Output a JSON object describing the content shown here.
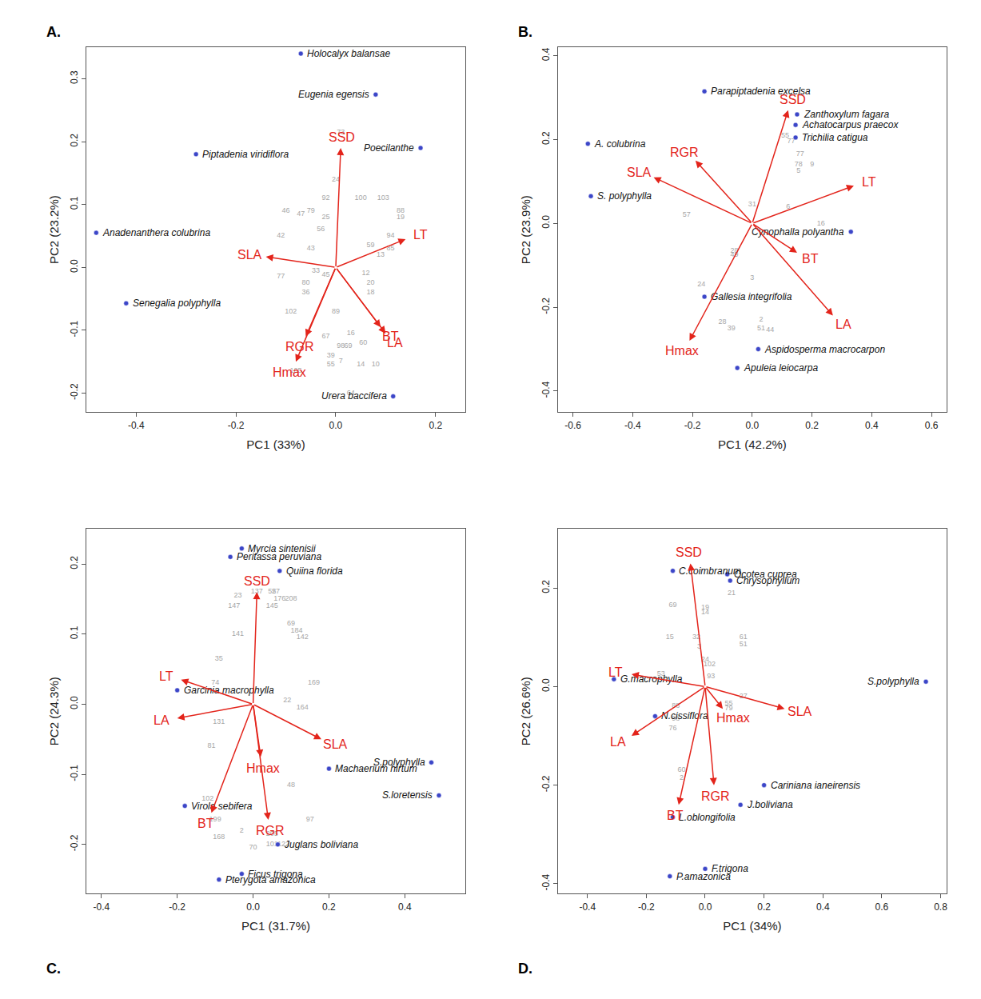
{
  "chart_data": [
    {
      "type": "biplot",
      "panel": "A.",
      "x_label": "PC1 (33%)",
      "y_label": "PC2 (23.2%)",
      "grid": false,
      "xlim": [
        -0.5,
        0.26
      ],
      "xticks": [
        -0.4,
        -0.2,
        {
          "value": 0,
          "label": "0.0"
        },
        0.2
      ],
      "ylim": [
        -0.23,
        0.35
      ],
      "yticks": [
        -0.2,
        -0.1,
        {
          "value": 0,
          "label": "0.0"
        },
        0.1,
        0.2,
        0.3
      ],
      "points": {
        "color": "#3c46c8",
        "labels": [
          "Holocalyx balansae",
          "Eugenia egensis",
          "Piptadenia viridiflora",
          "Poecilanthe",
          "Anadenanthera colubrina",
          "Senegalia polyphylla",
          "Urera baccifera"
        ],
        "x": [
          -0.07,
          0.08,
          -0.28,
          0.17,
          -0.48,
          -0.42,
          0.115
        ],
        "y": [
          0.34,
          0.275,
          0.18,
          0.19,
          0.055,
          -0.057,
          -0.205
        ]
      },
      "vectors": {
        "color": "#e3241b",
        "labels": [
          "SSD",
          "LT",
          "SLA",
          "BT",
          "LA",
          "RGR",
          "Hmax"
        ],
        "x": [
          0.01,
          0.14,
          -0.14,
          0.09,
          0.1,
          -0.06,
          -0.08
        ],
        "y": [
          0.19,
          0.045,
          0.017,
          -0.095,
          -0.105,
          -0.11,
          -0.15
        ]
      },
      "observations": {
        "color": "#a6a6a6",
        "labels": [
          "73",
          "24",
          "92",
          "100",
          "103",
          "88",
          "19",
          "46",
          "79",
          "47",
          "42",
          "56",
          "25",
          "43",
          "94",
          "59",
          "13",
          "85",
          "77",
          "80",
          "36",
          "102",
          "12",
          "20",
          "18",
          "89",
          "67",
          "98",
          "69",
          "60",
          "16",
          "39",
          "55",
          "7",
          "14",
          "10",
          "64",
          "33",
          "45",
          "105"
        ],
        "x": [
          0.01,
          0.0,
          -0.02,
          0.05,
          0.095,
          0.13,
          0.13,
          -0.1,
          -0.05,
          -0.07,
          -0.11,
          -0.03,
          -0.02,
          -0.05,
          0.11,
          0.07,
          0.09,
          0.11,
          -0.11,
          -0.06,
          -0.06,
          -0.09,
          0.06,
          0.07,
          0.07,
          0.0,
          -0.02,
          0.01,
          0.025,
          0.055,
          0.03,
          -0.01,
          -0.01,
          0.01,
          0.05,
          0.08,
          0.03,
          -0.04,
          -0.02,
          -0.08
        ],
        "y": [
          0.215,
          0.14,
          0.11,
          0.11,
          0.11,
          0.09,
          0.08,
          0.09,
          0.09,
          0.085,
          0.05,
          0.06,
          0.08,
          0.03,
          0.05,
          0.035,
          0.02,
          0.03,
          -0.015,
          -0.025,
          -0.04,
          -0.07,
          -0.01,
          -0.025,
          -0.04,
          -0.07,
          -0.11,
          -0.125,
          -0.125,
          -0.12,
          -0.105,
          -0.14,
          -0.155,
          -0.15,
          -0.155,
          -0.155,
          -0.2,
          -0.005,
          -0.012,
          -0.165
        ]
      }
    },
    {
      "type": "biplot",
      "panel": "B.",
      "x_label": "PC1 (42.2%)",
      "y_label": "PC2 (23.9%)",
      "grid": false,
      "xlim": [
        -0.65,
        0.65
      ],
      "xticks": [
        -0.6,
        -0.4,
        -0.2,
        {
          "value": 0,
          "label": "0.0"
        },
        0.2,
        0.4,
        0.6
      ],
      "ylim": [
        -0.45,
        0.42
      ],
      "yticks": [
        -0.4,
        -0.2,
        {
          "value": 0,
          "label": "0.0"
        },
        0.2,
        0.4
      ],
      "points": {
        "color": "#3c46c8",
        "labels": [
          "Parapiptadenia excelsa",
          "A. colubrina",
          "S. polyphylla",
          "Zanthoxylum fagara",
          "Achatocarpus praecox",
          "Trichilia catigua",
          "Cynophalla polyantha",
          "Gallesia integrifolia",
          "Aspidosperma macrocarpon",
          "Apuleia leiocarpa"
        ],
        "x": [
          -0.16,
          -0.55,
          -0.54,
          0.15,
          0.145,
          0.145,
          0.33,
          -0.16,
          0.02,
          -0.05
        ],
        "y": [
          0.315,
          0.19,
          0.065,
          0.26,
          0.235,
          0.205,
          -0.02,
          -0.175,
          -0.3,
          -0.345
        ]
      },
      "vectors": {
        "color": "#e3241b",
        "labels": [
          "SSD",
          "RGR",
          "SLA",
          "LT",
          "BT",
          "LA",
          "Hmax"
        ],
        "x": [
          0.12,
          -0.19,
          -0.33,
          0.34,
          0.15,
          0.27,
          -0.21
        ],
        "y": [
          0.27,
          0.15,
          0.11,
          0.09,
          -0.07,
          -0.22,
          -0.28
        ]
      },
      "observations": {
        "color": "#a6a6a6",
        "labels": [
          "55",
          "77",
          "77",
          "78",
          "5",
          "9",
          "31",
          "6",
          "16",
          "57",
          "28",
          "49",
          "3",
          "24",
          "28",
          "39",
          "2",
          "51",
          "44"
        ],
        "x": [
          0.11,
          0.13,
          0.16,
          0.155,
          0.155,
          0.2,
          0.0,
          0.12,
          0.23,
          -0.22,
          -0.06,
          -0.06,
          0.0,
          -0.17,
          -0.1,
          -0.07,
          0.03,
          0.03,
          0.06
        ],
        "y": [
          0.21,
          0.195,
          0.165,
          0.14,
          0.125,
          0.14,
          0.045,
          0.04,
          0.0,
          0.02,
          -0.065,
          -0.075,
          -0.13,
          -0.145,
          -0.235,
          -0.25,
          -0.23,
          -0.25,
          -0.255
        ]
      }
    },
    {
      "type": "biplot",
      "panel": "C.",
      "x_label": "PC1 (31.7%)",
      "y_label": "PC2 (24.3%)",
      "grid": false,
      "xlim": [
        -0.44,
        0.56
      ],
      "xticks": [
        -0.4,
        -0.2,
        {
          "value": 0,
          "label": "0.0"
        },
        0.2,
        0.4
      ],
      "ylim": [
        -0.27,
        0.25
      ],
      "yticks": [
        -0.2,
        -0.1,
        {
          "value": 0,
          "label": "0.0"
        },
        0.1,
        0.2
      ],
      "points": {
        "color": "#3c46c8",
        "labels": [
          "Peritassa peruviana",
          "Myrcia sintenisii",
          "Quiina florida",
          "Garcinia macrophylla",
          "Machaerium hirtum",
          "S.polyphylla",
          "S.loretensis",
          "Virola sebifera",
          "Juglans boliviana",
          "Ficus trigona",
          "Pterygota amazonica"
        ],
        "x": [
          -0.06,
          -0.03,
          0.07,
          -0.2,
          0.2,
          0.47,
          0.49,
          -0.18,
          0.065,
          -0.03,
          -0.09
        ],
        "y": [
          0.21,
          0.222,
          0.19,
          0.02,
          -0.092,
          -0.083,
          -0.13,
          -0.145,
          -0.2,
          -0.242,
          -0.25
        ]
      },
      "vectors": {
        "color": "#e3241b",
        "labels": [
          "SSD",
          "LT",
          "LA",
          "SLA",
          "Hmax",
          "BT",
          "RGR"
        ],
        "x": [
          0.01,
          -0.19,
          -0.2,
          0.18,
          0.02,
          -0.11,
          0.04
        ],
        "y": [
          0.16,
          0.035,
          -0.02,
          -0.05,
          -0.075,
          -0.155,
          -0.165
        ]
      },
      "observations": {
        "color": "#a6a6a6",
        "labels": [
          "23",
          "137",
          "55",
          "27",
          "176",
          "208",
          "147",
          "145",
          "141",
          "69",
          "184",
          "142",
          "35",
          "74",
          "169",
          "164",
          "22",
          "131",
          "81",
          "48",
          "102",
          "199",
          "168",
          "2",
          "70",
          "101",
          "122",
          "205",
          "97"
        ],
        "x": [
          -0.04,
          0.01,
          0.05,
          0.06,
          0.07,
          0.1,
          -0.05,
          0.05,
          -0.04,
          0.1,
          0.115,
          0.13,
          -0.09,
          -0.1,
          0.16,
          0.13,
          0.09,
          -0.09,
          -0.11,
          0.1,
          -0.12,
          -0.1,
          -0.09,
          -0.03,
          0.0,
          0.05,
          0.08,
          0.05,
          0.15
        ],
        "y": [
          0.155,
          0.16,
          0.16,
          0.16,
          0.15,
          0.15,
          0.14,
          0.14,
          0.1,
          0.115,
          0.105,
          0.095,
          0.065,
          0.03,
          0.03,
          -0.005,
          0.005,
          -0.025,
          -0.06,
          -0.115,
          -0.135,
          -0.165,
          -0.19,
          -0.18,
          -0.205,
          -0.2,
          -0.2,
          -0.185,
          -0.165
        ]
      }
    },
    {
      "type": "biplot",
      "panel": "D.",
      "x_label": "PC1 (34%)",
      "y_label": "PC2 (26.6%)",
      "grid": false,
      "xlim": [
        -0.5,
        0.82
      ],
      "xticks": [
        -0.4,
        -0.2,
        {
          "value": 0,
          "label": "0.0"
        },
        0.2,
        0.4,
        0.6,
        0.8
      ],
      "ylim": [
        -0.42,
        0.32
      ],
      "yticks": [
        -0.4,
        -0.2,
        {
          "value": 0,
          "label": "0.0"
        },
        0.2
      ],
      "points": {
        "color": "#3c46c8",
        "labels": [
          "C.coimbranum",
          "Ocotea cuprea",
          "Chrysophyllum",
          "G.macrophylla",
          "N.cissiflora",
          "S.polyphylla",
          "Cariniana ianeirensis",
          "J.boliviana",
          "L.oblongifolia",
          "P.amazonica",
          "F.trigona"
        ],
        "x": [
          -0.11,
          0.075,
          0.085,
          -0.31,
          -0.17,
          0.75,
          0.2,
          0.12,
          -0.11,
          -0.12,
          0.0
        ],
        "y": [
          0.235,
          0.228,
          0.215,
          0.015,
          -0.06,
          0.01,
          -0.2,
          -0.24,
          -0.265,
          -0.385,
          -0.37
        ]
      },
      "vectors": {
        "color": "#e3241b",
        "labels": [
          "SSD",
          "LT",
          "SLA",
          "LA",
          "Hmax",
          "RGR",
          "BT"
        ],
        "x": [
          -0.05,
          -0.25,
          0.27,
          -0.25,
          0.06,
          0.03,
          -0.09
        ],
        "y": [
          0.25,
          0.025,
          -0.045,
          -0.1,
          -0.045,
          -0.2,
          -0.24
        ]
      },
      "observations": {
        "color": "#a6a6a6",
        "labels": [
          "21",
          "69",
          "19",
          "14",
          "15",
          "32",
          "3",
          "61",
          "51",
          "24",
          "102",
          "93",
          "53",
          "88",
          "98",
          "76",
          "55",
          "79",
          "27",
          "60",
          "2"
        ],
        "x": [
          0.09,
          -0.11,
          0.0,
          0.0,
          -0.12,
          -0.03,
          -0.02,
          0.13,
          0.13,
          0.0,
          0.015,
          0.02,
          -0.15,
          -0.1,
          -0.1,
          -0.11,
          0.08,
          0.08,
          0.13,
          -0.08,
          -0.08
        ],
        "y": [
          0.19,
          0.165,
          0.16,
          0.15,
          0.1,
          0.1,
          0.08,
          0.1,
          0.085,
          0.055,
          0.045,
          0.02,
          0.025,
          -0.04,
          -0.065,
          -0.085,
          -0.035,
          -0.045,
          -0.02,
          -0.17,
          -0.185
        ]
      }
    }
  ]
}
